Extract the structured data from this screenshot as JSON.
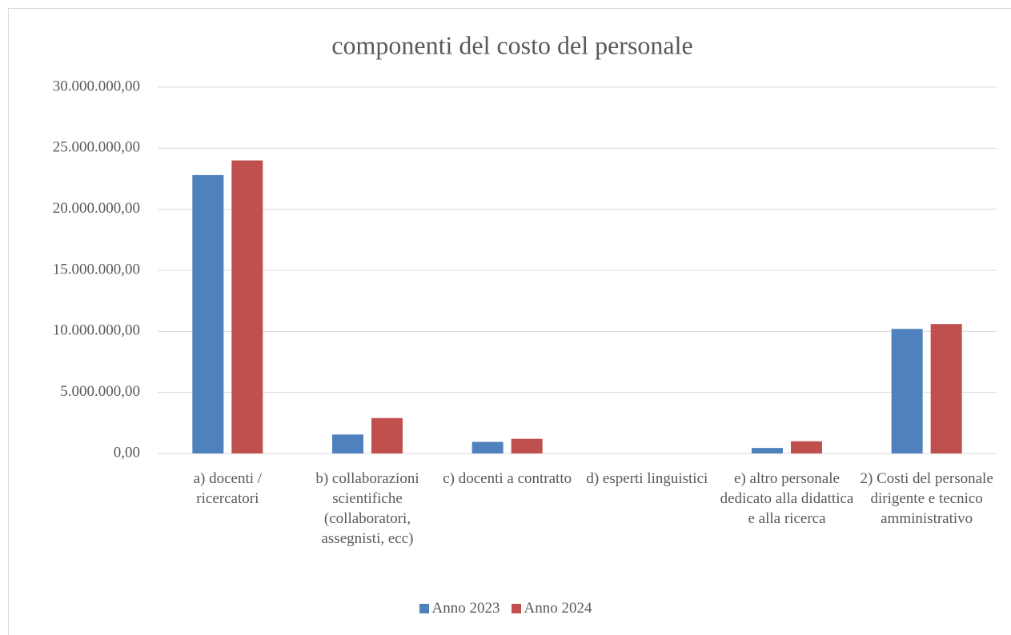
{
  "chart_data": {
    "type": "bar",
    "title": "componenti del costo del personale",
    "categories": [
      "a) docenti / ricercatori",
      "b) collaborazioni scientifiche (collaboratori, assegnisti, ecc)",
      "c) docenti a contratto",
      "d) esperti linguistici",
      "e) altro personale dedicato alla didattica e alla ricerca",
      "2) Costi del personale dirigente e tecnico amministrativo"
    ],
    "series": [
      {
        "name": "Anno 2023",
        "color": "#4f81bd",
        "values": [
          22800000,
          1550000,
          950000,
          0,
          450000,
          10200000
        ]
      },
      {
        "name": "Anno 2024",
        "color": "#c0504d",
        "values": [
          24000000,
          2900000,
          1200000,
          0,
          1000000,
          10600000
        ]
      }
    ],
    "ylim": [
      0,
      30000000
    ],
    "yticks": [
      {
        "value": 0,
        "label": "0,00"
      },
      {
        "value": 5000000,
        "label": "5.000.000,00"
      },
      {
        "value": 10000000,
        "label": "10.000.000,00"
      },
      {
        "value": 15000000,
        "label": "15.000.000,00"
      },
      {
        "value": 20000000,
        "label": "20.000.000,00"
      },
      {
        "value": 25000000,
        "label": "25.000.000,00"
      },
      {
        "value": 30000000,
        "label": "30.000.000,00"
      }
    ],
    "grid": true,
    "legend": "bottom"
  }
}
